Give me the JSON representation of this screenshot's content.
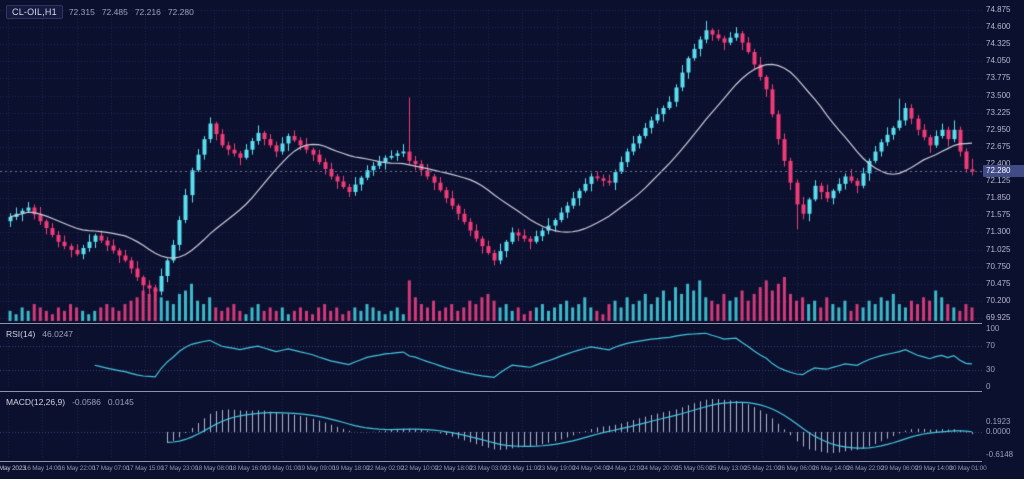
{
  "chart_data": {
    "type": "candlestick",
    "symbol": "CL-OIL,H1",
    "timeframe": "H1",
    "ohlc": {
      "open": "72.315",
      "high": "72.485",
      "low": "72.216",
      "close": "72.280"
    },
    "current_price": "72.280",
    "price_axis_ticks": [
      "74.875",
      "74.600",
      "74.325",
      "74.050",
      "73.775",
      "73.500",
      "73.225",
      "72.950",
      "72.675",
      "72.400",
      "72.125",
      "71.850",
      "71.575",
      "71.300",
      "71.025",
      "70.750",
      "70.475",
      "70.200",
      "69.925"
    ],
    "time_axis_labels": [
      "16 May 2023",
      "16 May 14:00",
      "16 May 22:00",
      "17 May 07:00",
      "17 May 15:00",
      "17 May 23:00",
      "18 May 08:00",
      "18 May 16:00",
      "19 May 01:00",
      "19 May 09:00",
      "19 May 18:00",
      "22 May 02:00",
      "22 May 10:00",
      "22 May 18:00",
      "23 May 03:00",
      "23 May 11:00",
      "23 May 19:00",
      "24 May 04:00",
      "24 May 12:00",
      "24 May 20:00",
      "25 May 05:00",
      "25 May 13:00",
      "25 May 21:00",
      "26 May 06:00",
      "26 May 14:00",
      "26 May 22:00",
      "29 May 06:00",
      "29 May 14:00",
      "30 May 01:00"
    ],
    "moving_average": {
      "period": 20
    },
    "indicators": [
      {
        "name": "RSI",
        "label": "RSI(14)",
        "value_label": "46.0247",
        "levels": [
          70,
          30
        ],
        "scale_labels": [
          "100",
          "70",
          "30",
          "0"
        ]
      },
      {
        "name": "MACD",
        "label": "MACD(12,26,9)",
        "value_labels": [
          "-0.0586",
          "0.0145"
        ],
        "scale_labels": [
          "0.1923",
          "0.0000",
          "-0.6148"
        ]
      }
    ],
    "colors": {
      "background": "#0c102f",
      "grid": "#21274d",
      "up": "#59dfef",
      "down": "#f23b76",
      "ma": "#c9cdda",
      "rsi": "#45c6e0",
      "macd_hist": "#aeb6cf",
      "macd_signal": "#45c6e0",
      "volume_up": "#3cb8c9",
      "volume_down": "#d23a78",
      "badge": "#414b85",
      "level_line": "#3c436e",
      "price_line": "#6a71a0"
    },
    "candles": [
      [
        71.48,
        71.61,
        71.39,
        71.55
      ],
      [
        71.55,
        71.7,
        71.5,
        71.6
      ],
      [
        71.6,
        71.69,
        71.48,
        71.65
      ],
      [
        71.65,
        71.79,
        71.62,
        71.7
      ],
      [
        71.7,
        71.75,
        71.51,
        71.59
      ],
      [
        71.59,
        71.71,
        71.42,
        71.48
      ],
      [
        71.48,
        71.51,
        71.27,
        71.37
      ],
      [
        71.37,
        71.45,
        71.22,
        71.26
      ],
      [
        71.26,
        71.32,
        71.06,
        71.15
      ],
      [
        71.15,
        71.25,
        71.03,
        71.08
      ],
      [
        71.08,
        71.12,
        70.9,
        71.02
      ],
      [
        71.02,
        71.11,
        70.92,
        70.95
      ],
      [
        70.95,
        71.1,
        70.87,
        71.05
      ],
      [
        71.05,
        71.27,
        70.99,
        71.15
      ],
      [
        71.15,
        71.28,
        71.05,
        71.25
      ],
      [
        71.25,
        71.33,
        71.13,
        71.17
      ],
      [
        71.17,
        71.23,
        71.0,
        71.09
      ],
      [
        71.09,
        71.19,
        70.96,
        71.01
      ],
      [
        71.01,
        71.05,
        70.81,
        70.93
      ],
      [
        70.93,
        71.02,
        70.82,
        70.85
      ],
      [
        70.85,
        70.9,
        70.64,
        70.72
      ],
      [
        70.72,
        70.84,
        70.52,
        70.58
      ],
      [
        70.58,
        70.61,
        70.3,
        70.45
      ],
      [
        70.45,
        70.53,
        70.25,
        70.4
      ],
      [
        70.4,
        70.46,
        70.2,
        70.35
      ],
      [
        70.35,
        70.72,
        70.29,
        70.6
      ],
      [
        70.6,
        70.88,
        70.5,
        70.85
      ],
      [
        70.85,
        71.18,
        70.81,
        71.1
      ],
      [
        71.1,
        71.56,
        71.01,
        71.5
      ],
      [
        71.5,
        72.0,
        71.45,
        71.9
      ],
      [
        71.9,
        72.34,
        71.78,
        72.3
      ],
      [
        72.3,
        72.64,
        72.27,
        72.55
      ],
      [
        72.55,
        72.85,
        72.47,
        72.8
      ],
      [
        72.8,
        73.15,
        72.74,
        73.05
      ],
      [
        73.05,
        73.08,
        72.78,
        72.88
      ],
      [
        72.88,
        72.96,
        72.66,
        72.7
      ],
      [
        72.7,
        72.76,
        72.54,
        72.63
      ],
      [
        72.63,
        72.73,
        72.52,
        72.57
      ],
      [
        72.57,
        72.61,
        72.38,
        72.5
      ],
      [
        72.5,
        72.72,
        72.47,
        72.63
      ],
      [
        72.63,
        72.82,
        72.55,
        72.77
      ],
      [
        72.77,
        73.02,
        72.71,
        72.9
      ],
      [
        72.9,
        72.93,
        72.7,
        72.8
      ],
      [
        72.8,
        72.88,
        72.66,
        72.7
      ],
      [
        72.7,
        72.76,
        72.51,
        72.6
      ],
      [
        72.6,
        72.83,
        72.55,
        72.73
      ],
      [
        72.73,
        72.89,
        72.61,
        72.85
      ],
      [
        72.85,
        72.94,
        72.75,
        72.78
      ],
      [
        72.78,
        72.83,
        72.62,
        72.7
      ],
      [
        72.7,
        72.82,
        72.57,
        72.63
      ],
      [
        72.63,
        72.66,
        72.45,
        72.55
      ],
      [
        72.55,
        72.63,
        72.39,
        72.43
      ],
      [
        72.43,
        72.49,
        72.23,
        72.32
      ],
      [
        72.32,
        72.42,
        72.15,
        72.2
      ],
      [
        72.2,
        72.24,
        72.0,
        72.12
      ],
      [
        72.12,
        72.21,
        72.0,
        72.03
      ],
      [
        72.03,
        72.08,
        71.87,
        71.95
      ],
      [
        71.95,
        72.19,
        71.89,
        72.07
      ],
      [
        72.07,
        72.21,
        71.97,
        72.18
      ],
      [
        72.18,
        72.38,
        72.14,
        72.3
      ],
      [
        72.3,
        72.43,
        72.21,
        72.37
      ],
      [
        72.37,
        72.53,
        72.32,
        72.43
      ],
      [
        72.43,
        72.54,
        72.31,
        72.5
      ],
      [
        72.5,
        72.62,
        72.47,
        72.53
      ],
      [
        72.53,
        72.62,
        72.45,
        72.57
      ],
      [
        72.57,
        72.72,
        72.51,
        72.6
      ],
      [
        72.6,
        73.47,
        72.38,
        72.45
      ],
      [
        72.45,
        72.53,
        72.3,
        72.4
      ],
      [
        72.4,
        72.46,
        72.21,
        72.3
      ],
      [
        72.3,
        72.4,
        72.15,
        72.2
      ],
      [
        72.2,
        72.24,
        71.98,
        72.1
      ],
      [
        72.1,
        72.19,
        71.95,
        71.98
      ],
      [
        71.98,
        72.03,
        71.77,
        71.85
      ],
      [
        71.85,
        71.97,
        71.67,
        71.73
      ],
      [
        71.73,
        71.76,
        71.5,
        71.6
      ],
      [
        71.6,
        71.68,
        71.43,
        71.47
      ],
      [
        71.47,
        71.53,
        71.24,
        71.33
      ],
      [
        71.33,
        71.43,
        71.15,
        71.2
      ],
      [
        71.2,
        71.24,
        70.96,
        71.08
      ],
      [
        71.08,
        71.17,
        70.94,
        70.97
      ],
      [
        70.97,
        71.02,
        70.77,
        70.85
      ],
      [
        70.85,
        71.12,
        70.79,
        71.0
      ],
      [
        71.0,
        71.18,
        70.9,
        71.15
      ],
      [
        71.15,
        71.38,
        71.11,
        71.3
      ],
      [
        71.3,
        71.36,
        71.16,
        71.25
      ],
      [
        71.25,
        71.35,
        71.15,
        71.2
      ],
      [
        71.2,
        71.24,
        71.03,
        71.15
      ],
      [
        71.15,
        71.33,
        71.12,
        71.24
      ],
      [
        71.24,
        71.38,
        71.16,
        71.33
      ],
      [
        71.33,
        71.53,
        71.27,
        71.41
      ],
      [
        71.41,
        71.53,
        71.31,
        71.5
      ],
      [
        71.5,
        71.7,
        71.46,
        71.62
      ],
      [
        71.62,
        71.79,
        71.53,
        71.73
      ],
      [
        71.73,
        71.95,
        71.68,
        71.85
      ],
      [
        71.85,
        72.01,
        71.73,
        71.97
      ],
      [
        71.97,
        72.17,
        71.94,
        72.08
      ],
      [
        72.08,
        72.25,
        71.96,
        72.2
      ],
      [
        72.2,
        72.28,
        72.13,
        72.17
      ],
      [
        72.17,
        72.23,
        72.04,
        72.13
      ],
      [
        72.13,
        72.23,
        72.05,
        72.1
      ],
      [
        72.1,
        72.31,
        71.98,
        72.27
      ],
      [
        72.27,
        72.52,
        72.24,
        72.43
      ],
      [
        72.43,
        72.65,
        72.35,
        72.6
      ],
      [
        72.6,
        72.85,
        72.54,
        72.73
      ],
      [
        72.73,
        72.88,
        72.65,
        72.85
      ],
      [
        72.85,
        73.06,
        72.81,
        72.98
      ],
      [
        72.98,
        73.16,
        72.89,
        73.1
      ],
      [
        73.1,
        73.3,
        73.05,
        73.2
      ],
      [
        73.2,
        73.34,
        73.08,
        73.3
      ],
      [
        73.3,
        73.49,
        73.27,
        73.4
      ],
      [
        73.4,
        73.68,
        73.32,
        73.63
      ],
      [
        73.63,
        73.99,
        73.57,
        73.87
      ],
      [
        73.87,
        74.13,
        73.77,
        74.1
      ],
      [
        74.1,
        74.33,
        74.06,
        74.25
      ],
      [
        74.25,
        74.45,
        74.13,
        74.4
      ],
      [
        74.4,
        74.7,
        74.34,
        74.55
      ],
      [
        74.55,
        74.58,
        74.38,
        74.48
      ],
      [
        74.48,
        74.56,
        74.38,
        74.42
      ],
      [
        74.42,
        74.46,
        74.23,
        74.35
      ],
      [
        74.35,
        74.52,
        74.31,
        74.43
      ],
      [
        74.43,
        74.6,
        74.38,
        74.5
      ],
      [
        74.5,
        74.54,
        74.23,
        74.35
      ],
      [
        74.35,
        74.44,
        74.17,
        74.2
      ],
      [
        74.2,
        74.25,
        73.92,
        74.0
      ],
      [
        74.0,
        74.12,
        73.74,
        73.8
      ],
      [
        73.8,
        73.83,
        73.48,
        73.6
      ],
      [
        73.6,
        73.68,
        73.15,
        73.2
      ],
      [
        73.2,
        73.26,
        72.71,
        72.8
      ],
      [
        72.8,
        72.89,
        72.36,
        72.45
      ],
      [
        72.45,
        72.5,
        71.98,
        72.1
      ],
      [
        72.1,
        72.15,
        71.35,
        71.75
      ],
      [
        71.75,
        71.87,
        71.51,
        71.6
      ],
      [
        71.6,
        71.86,
        71.48,
        71.83
      ],
      [
        71.83,
        72.14,
        71.8,
        72.05
      ],
      [
        72.05,
        72.1,
        71.83,
        71.95
      ],
      [
        71.95,
        72.07,
        71.79,
        71.85
      ],
      [
        71.85,
        72.0,
        71.75,
        71.97
      ],
      [
        71.97,
        72.17,
        71.93,
        72.08
      ],
      [
        72.08,
        72.25,
        71.99,
        72.2
      ],
      [
        72.2,
        72.32,
        72.09,
        72.13
      ],
      [
        72.13,
        72.17,
        71.93,
        72.05
      ],
      [
        72.05,
        72.34,
        72.01,
        72.25
      ],
      [
        72.25,
        72.49,
        72.13,
        72.45
      ],
      [
        72.45,
        72.69,
        72.41,
        72.6
      ],
      [
        72.6,
        72.8,
        72.52,
        72.75
      ],
      [
        72.75,
        72.99,
        72.69,
        72.87
      ],
      [
        72.87,
        73.01,
        72.79,
        72.98
      ],
      [
        72.98,
        73.45,
        72.94,
        73.1
      ],
      [
        73.1,
        73.38,
        73.02,
        73.3
      ],
      [
        73.3,
        73.36,
        73.04,
        73.13
      ],
      [
        73.13,
        73.19,
        72.86,
        72.95
      ],
      [
        72.95,
        73.04,
        72.78,
        72.83
      ],
      [
        72.83,
        72.87,
        72.58,
        72.7
      ],
      [
        72.7,
        72.94,
        72.66,
        72.85
      ],
      [
        72.85,
        73.05,
        72.81,
        72.95
      ],
      [
        72.95,
        73.0,
        72.68,
        72.8
      ],
      [
        72.8,
        73.1,
        72.75,
        72.95
      ],
      [
        72.95,
        73.0,
        72.52,
        72.6
      ],
      [
        72.6,
        72.65,
        72.26,
        72.32
      ],
      [
        72.315,
        72.485,
        72.216,
        72.28
      ]
    ],
    "volumes": [
      3,
      2,
      4,
      3,
      5,
      4,
      3,
      2,
      4,
      3,
      5,
      4,
      3,
      2,
      3,
      4,
      5,
      4,
      3,
      5,
      6,
      7,
      9,
      8,
      10,
      7,
      6,
      5,
      8,
      9,
      11,
      6,
      5,
      7,
      4,
      3,
      4,
      5,
      3,
      2,
      4,
      5,
      3,
      4,
      3,
      4,
      2,
      3,
      4,
      3,
      2,
      4,
      5,
      3,
      4,
      2,
      3,
      4,
      3,
      5,
      4,
      3,
      2,
      3,
      4,
      2,
      12,
      7,
      5,
      4,
      6,
      3,
      4,
      5,
      3,
      4,
      6,
      5,
      7,
      8,
      6,
      4,
      5,
      3,
      4,
      2,
      3,
      4,
      5,
      3,
      4,
      5,
      6,
      4,
      5,
      7,
      4,
      3,
      2,
      5,
      6,
      4,
      7,
      5,
      6,
      8,
      5,
      7,
      9,
      6,
      10,
      8,
      11,
      9,
      12,
      7,
      6,
      5,
      8,
      6,
      7,
      9,
      6,
      8,
      10,
      12,
      9,
      11,
      13,
      8,
      6,
      7,
      5,
      6,
      4,
      7,
      5,
      4,
      6,
      3,
      5,
      4,
      6,
      5,
      7,
      6,
      8,
      5,
      4,
      6,
      5,
      7,
      6,
      9,
      7,
      5,
      4,
      3,
      5,
      4
    ]
  }
}
